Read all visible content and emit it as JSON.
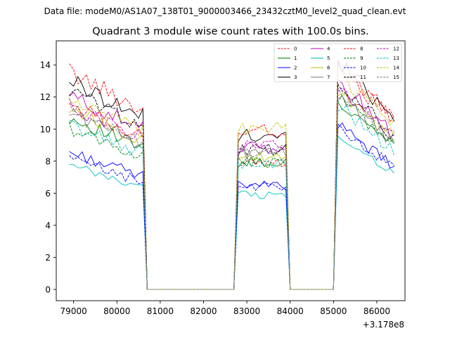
{
  "chart_data": {
    "type": "line",
    "suptitle": "Data file: modeM0/AS1A07_138T01_9000003466_23432cztM0_level2_quad_clean.evt",
    "title": "Quadrant 3 module wise count rates with 100.0s bins.",
    "xlabel": "",
    "ylabel": "",
    "offset_label": "+3.178e8",
    "x_offset": 317800000,
    "xlim": [
      78600,
      86650
    ],
    "ylim": [
      -0.7,
      15.5
    ],
    "xticks": [
      79000,
      80000,
      81000,
      82000,
      83000,
      84000,
      85000,
      86000
    ],
    "xtick_labels": [
      "79000",
      "80000",
      "81000",
      "82000",
      "83000",
      "84000",
      "85000",
      "86000"
    ],
    "yticks": [
      0,
      2,
      4,
      6,
      8,
      10,
      12,
      14
    ],
    "ytick_labels": [
      "0",
      "2",
      "4",
      "6",
      "8",
      "10",
      "12",
      "14"
    ],
    "legend_location": "upper right",
    "legend_columns": 4,
    "segments": [
      {
        "start": 78900,
        "end": 80600
      },
      {
        "start": 82800,
        "end": 83900
      },
      {
        "start": 85100,
        "end": 86400
      }
    ],
    "zero_gaps": [
      [
        80700,
        82700
      ],
      [
        84000,
        85000
      ]
    ],
    "bin_width": 100,
    "series": [
      {
        "name": "0",
        "color": "#ff0000",
        "dash": "dashed",
        "levels": [
          12.7,
          8.0,
          12.4
        ]
      },
      {
        "name": "1",
        "color": "#008000",
        "dash": "solid",
        "levels": [
          10.0,
          7.9,
          10.5
        ]
      },
      {
        "name": "2",
        "color": "#0000ff",
        "dash": "solid",
        "levels": [
          8.0,
          6.5,
          9.0
        ]
      },
      {
        "name": "3",
        "color": "#000000",
        "dash": "solid",
        "levels": [
          12.2,
          9.6,
          12.6
        ]
      },
      {
        "name": "4",
        "color": "#bf00bf",
        "dash": "solid",
        "levels": [
          11.3,
          8.8,
          11.5
        ]
      },
      {
        "name": "5",
        "color": "#00bfbf",
        "dash": "solid",
        "levels": [
          7.2,
          5.9,
          8.6
        ]
      },
      {
        "name": "6",
        "color": "#bfbf00",
        "dash": "solid",
        "levels": [
          10.6,
          8.2,
          11.0
        ]
      },
      {
        "name": "7",
        "color": "#808080",
        "dash": "solid",
        "levels": [
          10.3,
          8.5,
          10.8
        ]
      },
      {
        "name": "8",
        "color": "#ff0000",
        "dash": "dashed",
        "levels": [
          10.8,
          9.9,
          12.3
        ]
      },
      {
        "name": "9",
        "color": "#008000",
        "dash": "dashed",
        "levels": [
          9.4,
          7.9,
          10.6
        ]
      },
      {
        "name": "10",
        "color": "#0000ff",
        "dash": "dashed",
        "levels": [
          7.6,
          6.4,
          8.9
        ]
      },
      {
        "name": "11",
        "color": "#000000",
        "dash": "dashed",
        "levels": [
          11.6,
          8.7,
          11.3
        ]
      },
      {
        "name": "12",
        "color": "#bf00bf",
        "dash": "dashed",
        "levels": [
          10.7,
          8.9,
          11.1
        ]
      },
      {
        "name": "13",
        "color": "#00bfbf",
        "dash": "dashed",
        "levels": [
          9.6,
          7.8,
          10.2
        ]
      },
      {
        "name": "14",
        "color": "#bfbf00",
        "dash": "dashed",
        "levels": [
          11.1,
          10.0,
          12.0
        ]
      },
      {
        "name": "15",
        "color": "#808080",
        "dash": "dashed",
        "levels": [
          10.5,
          8.6,
          11.0
        ]
      }
    ]
  }
}
